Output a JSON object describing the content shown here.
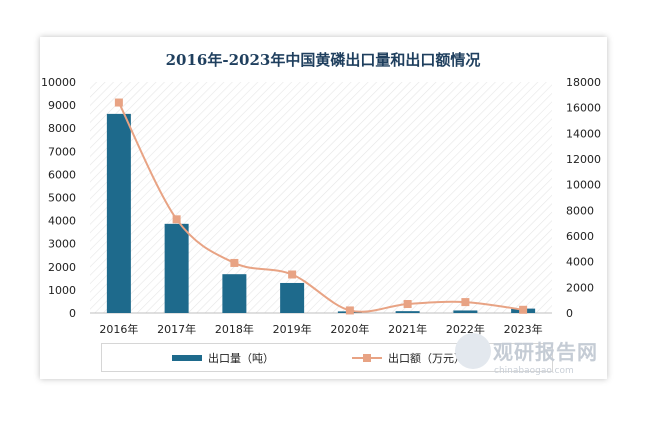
{
  "chart_data": {
    "type": "bar",
    "title": "2016年-2023年中国黄磷出口量和出口额情况",
    "categories": [
      "2016年",
      "2017年",
      "2018年",
      "2019年",
      "2020年",
      "2021年",
      "2022年",
      "2023年"
    ],
    "series": [
      {
        "name": "出口量（吨）",
        "type": "bar",
        "axis": "left",
        "color": "#1e6a8c",
        "values": [
          8620,
          3860,
          1680,
          1300,
          70,
          80,
          110,
          190
        ]
      },
      {
        "name": "出口额（万元）",
        "type": "line",
        "axis": "right",
        "color": "#e8a384",
        "values": [
          16400,
          7300,
          3900,
          3000,
          200,
          700,
          850,
          250
        ]
      }
    ],
    "ylim_left": [
      0,
      10000
    ],
    "yticks_left": [
      "0",
      "1000",
      "2000",
      "3000",
      "4000",
      "5000",
      "6000",
      "7000",
      "8000",
      "9000",
      "10000"
    ],
    "ylim_right": [
      0,
      18000
    ],
    "yticks_right": [
      "0",
      "2000",
      "4000",
      "6000",
      "8000",
      "10000",
      "12000",
      "14000",
      "16000",
      "18000"
    ],
    "legend_position": "bottom",
    "background": "diagonal-hatch"
  },
  "watermark": {
    "brand": "观研报告网",
    "url": "chinabaogao.com"
  }
}
